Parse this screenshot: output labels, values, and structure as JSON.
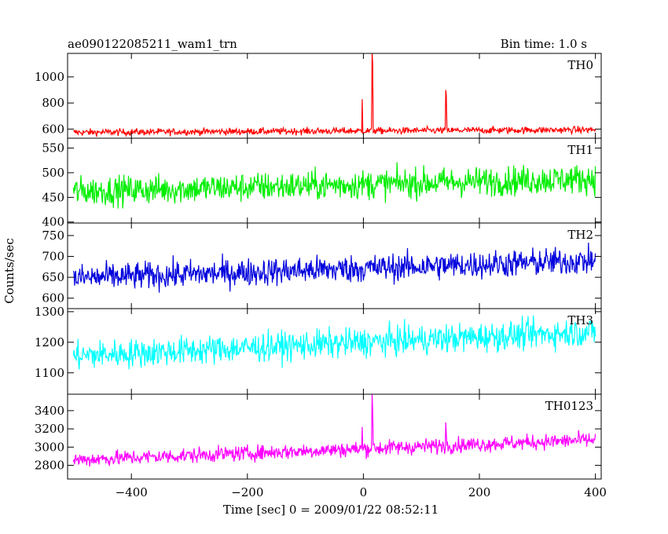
{
  "header": {
    "title": "ae090122085211_wam1_trn",
    "bin_time": "Bin time: 1.0 s"
  },
  "chart_data": {
    "type": "line",
    "xlabel": "Time [sec] 0 = 2009/01/22 08:52:11",
    "ylabel": "Counts/sec",
    "xlim": [
      -510,
      410
    ],
    "x_ticks": [
      -400,
      -200,
      0,
      200,
      400
    ],
    "x_tick_labels": [
      "−400",
      "−200",
      "0",
      "200",
      "400"
    ],
    "x_range": [
      -500,
      400
    ],
    "grid": false,
    "panels": [
      {
        "name": "TH0",
        "color": "#ff0000",
        "ylim": [
          530,
          1180
        ],
        "y_ticks": [
          600,
          800,
          1000
        ],
        "y_tick_labels": [
          "600",
          "800",
          "1000"
        ],
        "base_start": 575,
        "base_end": 595,
        "noise": 22,
        "spikes": [
          [
            -2,
            830
          ],
          [
            15,
            1190
          ],
          [
            16,
            1100
          ],
          [
            142,
            900
          ],
          [
            143,
            860
          ]
        ]
      },
      {
        "name": "TH1",
        "color": "#00ee00",
        "ylim": [
          398,
          570
        ],
        "y_ticks": [
          400,
          450,
          500,
          550
        ],
        "y_tick_labels": [
          "400",
          "450",
          "500",
          "550"
        ],
        "base_start": 462,
        "base_end": 488,
        "noise": 25,
        "spikes": []
      },
      {
        "name": "TH2",
        "color": "#0000dd",
        "ylim": [
          575,
          780
        ],
        "y_ticks": [
          600,
          650,
          700,
          750
        ],
        "y_tick_labels": [
          "600",
          "650",
          "700",
          "750"
        ],
        "base_start": 648,
        "base_end": 690,
        "noise": 28,
        "spikes": []
      },
      {
        "name": "TH3",
        "color": "#00ffff",
        "ylim": [
          1030,
          1310
        ],
        "y_ticks": [
          1100,
          1200,
          1300
        ],
        "y_tick_labels": [
          "1100",
          "1200",
          "1300"
        ],
        "base_start": 1155,
        "base_end": 1235,
        "noise": 40,
        "spikes": []
      },
      {
        "name": "TH0123",
        "color": "#ff00ff",
        "ylim": [
          2650,
          3580
        ],
        "y_ticks": [
          2800,
          3000,
          3200,
          3400
        ],
        "y_tick_labels": [
          "2800",
          "3000",
          "3200",
          "3400"
        ],
        "base_start": 2860,
        "base_end": 3080,
        "noise": 70,
        "spikes": [
          [
            -2,
            3220
          ],
          [
            15,
            3580
          ],
          [
            16,
            3400
          ],
          [
            142,
            3270
          ],
          [
            143,
            3150
          ]
        ]
      }
    ]
  }
}
